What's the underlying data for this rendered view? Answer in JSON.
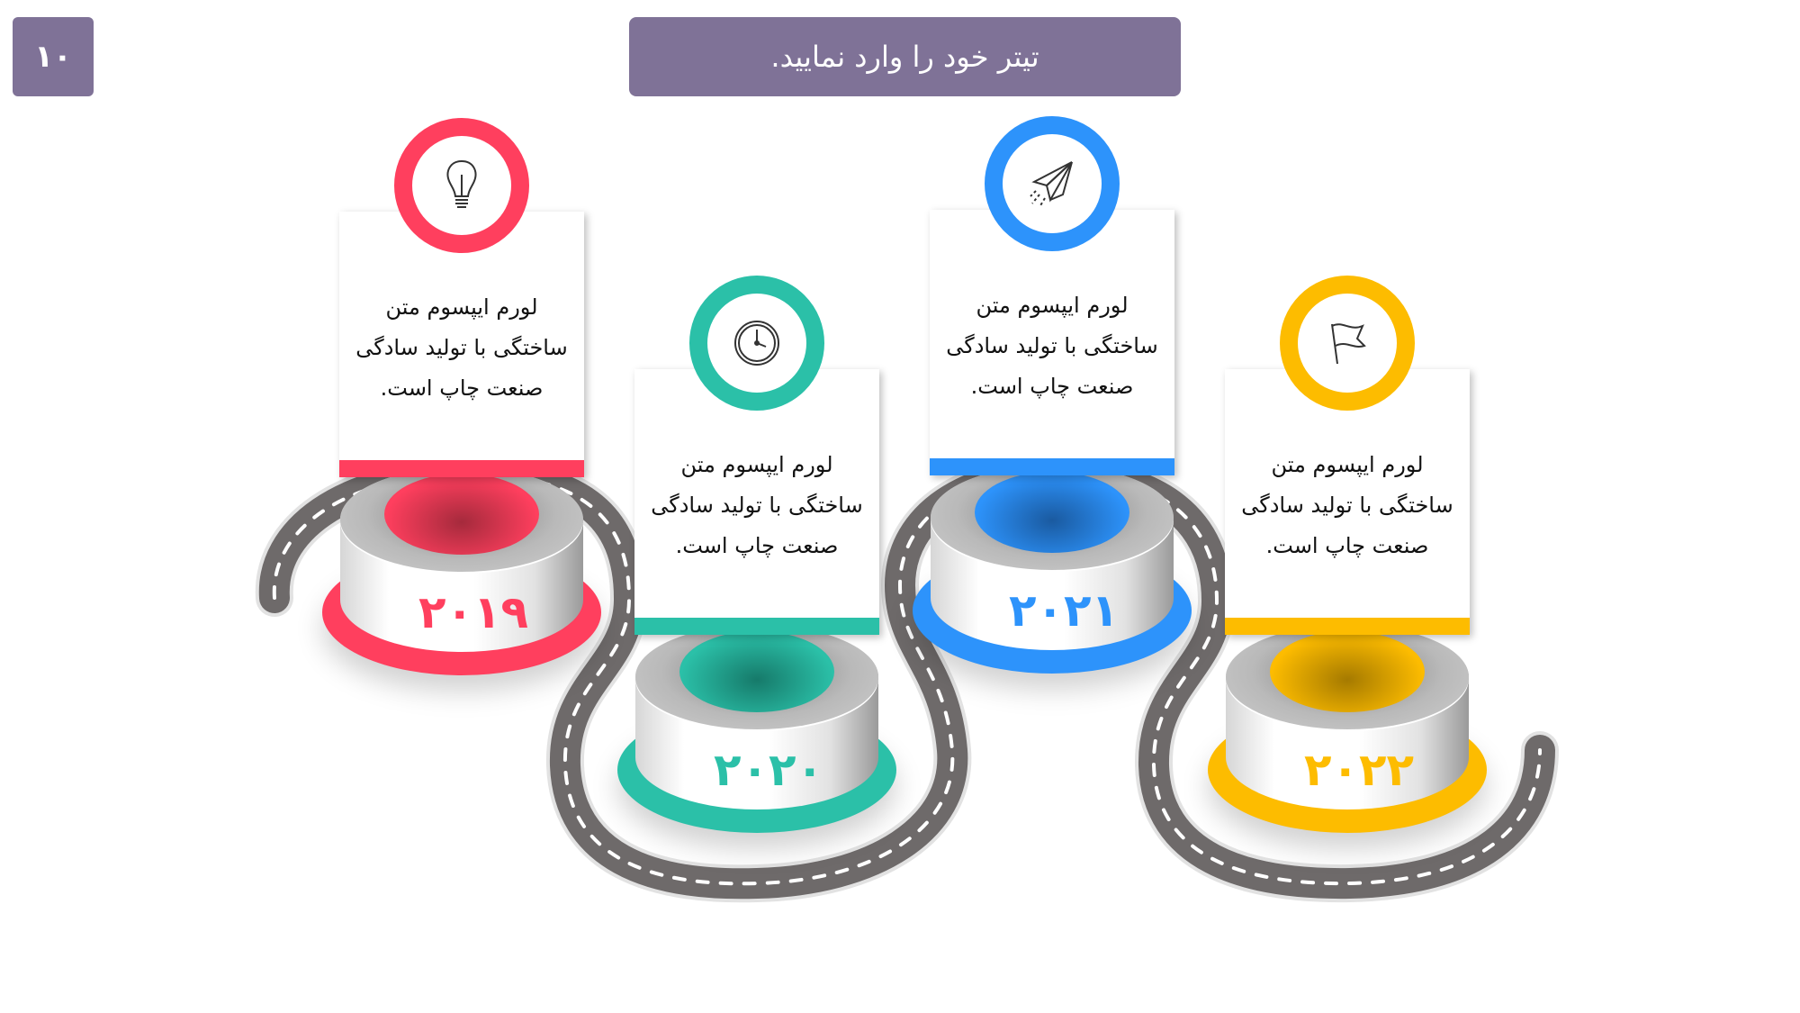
{
  "page_number": "۱۰",
  "title": "تیتر خود را وارد نمایید.",
  "colors": {
    "header": "#7F7297",
    "road": "#6e6a6a"
  },
  "steps": [
    {
      "year": "۲۰۱۹",
      "icon": "lightbulb-icon",
      "color": "#FF3F5E",
      "lines": [
        "لورم ایپسوم متن",
        "ساختگی با تولید سادگی",
        "صنعت چاپ است."
      ]
    },
    {
      "year": "۲۰۲۰",
      "icon": "clock-icon",
      "color": "#2BC0A8",
      "lines": [
        "لورم ایپسوم متن",
        "ساختگی با تولید سادگی",
        "صنعت چاپ است."
      ]
    },
    {
      "year": "۲۰۲۱",
      "icon": "paper-plane-icon",
      "color": "#2D93FB",
      "lines": [
        "لورم ایپسوم متن",
        "ساختگی با تولید سادگی",
        "صنعت چاپ است."
      ]
    },
    {
      "year": "۲۰۲۲",
      "icon": "flag-icon",
      "color": "#FDBC00",
      "lines": [
        "لورم ایپسوم متن",
        "ساختگی با تولید سادگی",
        "صنعت چاپ است."
      ]
    }
  ]
}
